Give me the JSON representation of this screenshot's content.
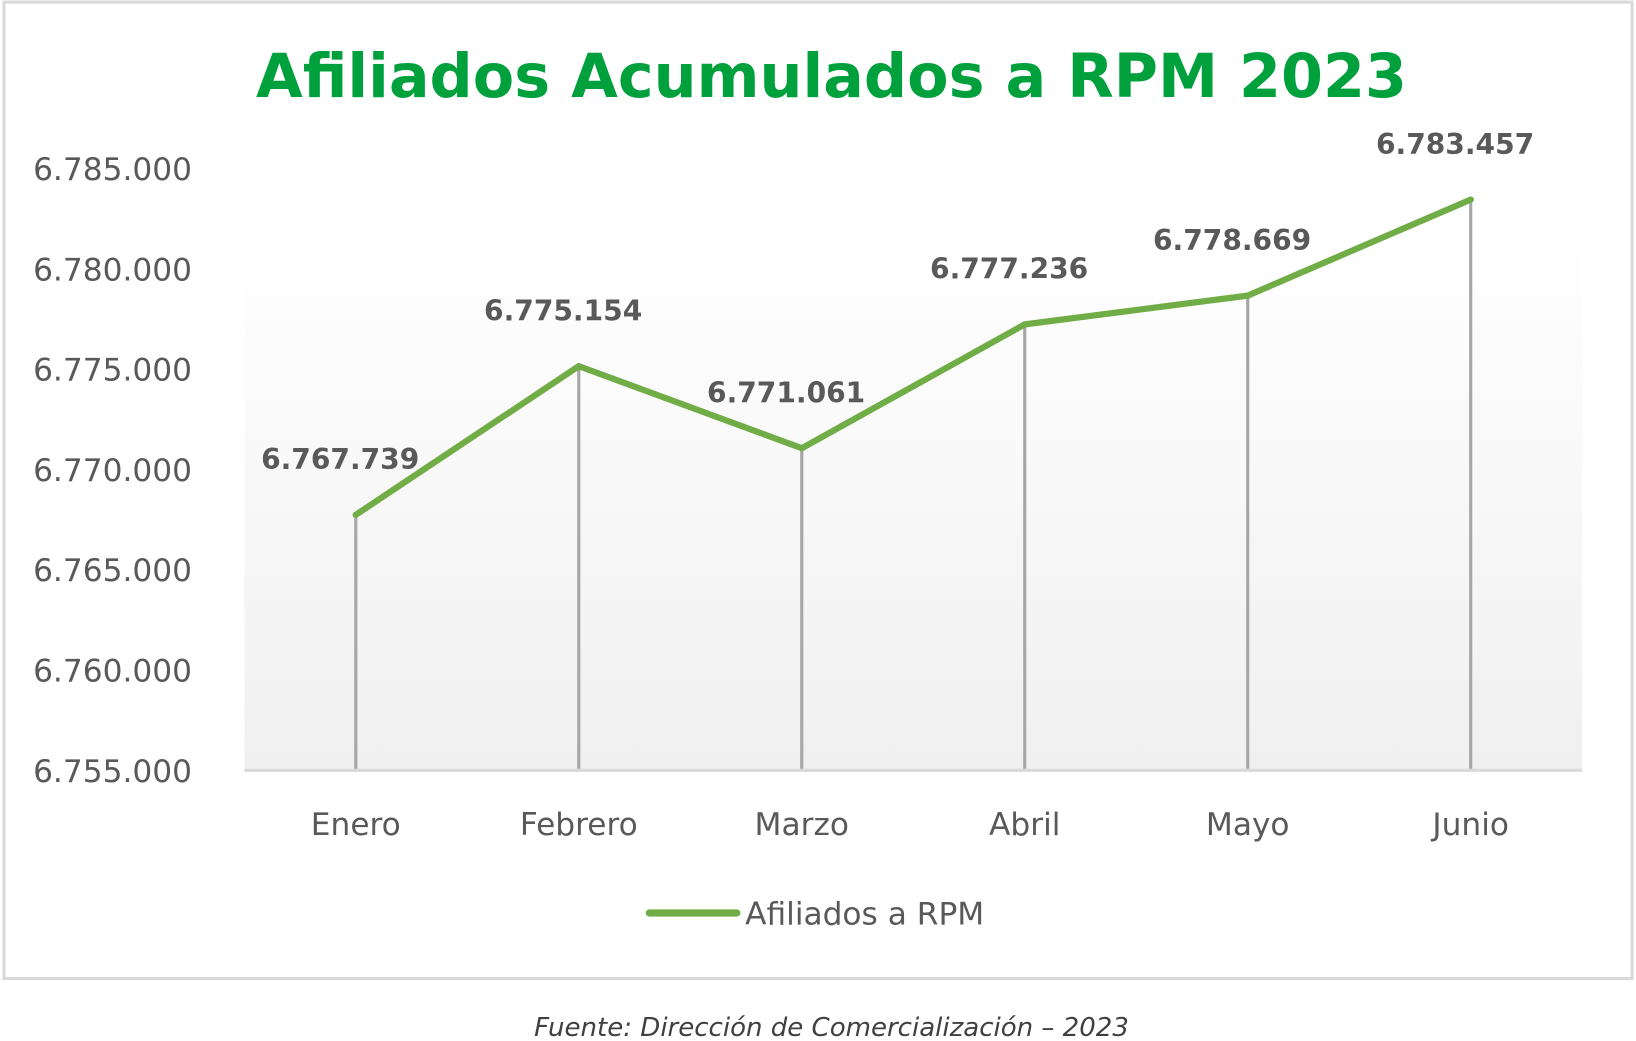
{
  "chart_data": {
    "type": "line",
    "title": "Afiliados Acumulados a RPM 2023",
    "categories": [
      "Enero",
      "Febrero",
      "Marzo",
      "Abril",
      "Mayo",
      "Junio"
    ],
    "series": [
      {
        "name": "Afiliados a RPM",
        "values": [
          6767739,
          6775154,
          6771061,
          6777236,
          6778669,
          6783457
        ],
        "labels": [
          "6.767.739",
          "6.775.154",
          "6.771.061",
          "6.777.236",
          "6.778.669",
          "6.783.457"
        ],
        "color": "#70ad47"
      }
    ],
    "yticks": [
      6755000,
      6760000,
      6765000,
      6770000,
      6775000,
      6780000,
      6785000
    ],
    "ytick_labels": [
      "6.755.000",
      "6.760.000",
      "6.765.000",
      "6.770.000",
      "6.775.000",
      "6.780.000",
      "6.785.000"
    ],
    "ylim": [
      6755000,
      6785000
    ],
    "xlabel": "",
    "ylabel": "",
    "legend_position": "bottom",
    "drop_lines": true,
    "grid": false
  },
  "title_color": "#00a03c",
  "source_note": "Fuente: Dirección de Comercialización – 2023"
}
